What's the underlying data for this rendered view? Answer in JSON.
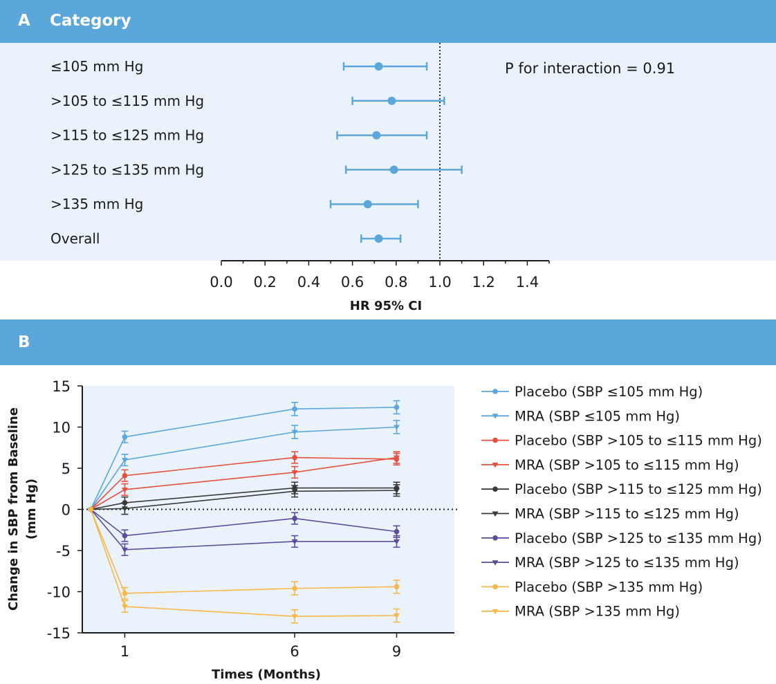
{
  "panel_a": {
    "letter": "A",
    "title": "Category"
  },
  "panel_b": {
    "letter": "B"
  },
  "colors": {
    "header": "#5ba7dc",
    "panel_bg": "#eaf3fb",
    "forest": "#5ba7dc",
    "sbp_le105": "#5ba7dc",
    "sbp_105_115": "#e8503e",
    "sbp_115_125": "#3a3a3a",
    "sbp_125_135": "#5b4d99",
    "sbp_gt135": "#f7b84b"
  },
  "chart_data": [
    {
      "type": "forest",
      "xlabel": "HR 95% CI",
      "xlim": [
        0.0,
        1.5
      ],
      "xticks": [
        "0.0",
        "0.2",
        "0.4",
        "0.6",
        "0.8",
        "1.0",
        "1.2",
        "1.4"
      ],
      "xtick_values": [
        0.0,
        0.2,
        0.4,
        0.6,
        0.8,
        1.0,
        1.2,
        1.4
      ],
      "reference_line": 1.0,
      "annotation": "P for interaction = 0.91",
      "categories": [
        "≤105 mm Hg",
        ">105 to ≤115 mm Hg",
        ">115 to ≤125 mm Hg",
        ">125 to ≤135 mm Hg",
        ">135 mm Hg",
        "Overall"
      ],
      "hr": [
        0.72,
        0.78,
        0.71,
        0.79,
        0.67,
        0.72
      ],
      "ci_low": [
        0.56,
        0.6,
        0.53,
        0.57,
        0.5,
        0.64
      ],
      "ci_high": [
        0.94,
        1.02,
        0.94,
        1.1,
        0.9,
        0.82
      ]
    },
    {
      "type": "line",
      "xlabel": "Times (Months)",
      "ylabel": "Change in SBP from Baseline (mm Hg)",
      "ylabel_lines": [
        "Change in SBP from Baseline",
        "(mm Hg)"
      ],
      "ylim": [
        -15,
        15
      ],
      "yticks": [
        "15",
        "10",
        "5",
        "0",
        "-5",
        "-10",
        "-15"
      ],
      "ytick_values": [
        15,
        10,
        5,
        0,
        -5,
        -10,
        -15
      ],
      "xlim": [
        -0.25,
        10.7
      ],
      "xticks": [
        "1",
        "6",
        "9"
      ],
      "xtick_values": [
        1,
        6,
        9
      ],
      "reference_line": 0,
      "legend_position": "right",
      "x": [
        0,
        1,
        6,
        9
      ],
      "series": [
        {
          "name": "Placebo (SBP ≤105 mm Hg)",
          "color": "#5ba7dc",
          "marker": "circle",
          "values": [
            0,
            8.8,
            12.2,
            12.4
          ],
          "err": [
            0,
            0.7,
            0.8,
            0.8
          ]
        },
        {
          "name": "MRA (SBP ≤105 mm Hg)",
          "color": "#5ba7dc",
          "marker": "triangle-down",
          "values": [
            0,
            6.0,
            9.4,
            10.0
          ],
          "err": [
            0,
            0.7,
            0.8,
            0.8
          ]
        },
        {
          "name": "Placebo (SBP >105 to ≤115 mm Hg)",
          "color": "#e8503e",
          "marker": "circle",
          "values": [
            0,
            4.1,
            6.3,
            6.1
          ],
          "err": [
            0,
            0.7,
            0.7,
            0.7
          ]
        },
        {
          "name": "MRA (SBP >105 to ≤115 mm Hg)",
          "color": "#e8503e",
          "marker": "triangle-down",
          "values": [
            0,
            2.4,
            4.5,
            6.3
          ],
          "err": [
            0,
            0.7,
            0.7,
            0.7
          ]
        },
        {
          "name": "Placebo (SBP >115 to ≤125 mm Hg)",
          "color": "#3a3a3a",
          "marker": "circle",
          "values": [
            0,
            0.8,
            2.6,
            2.6
          ],
          "err": [
            0,
            0.7,
            0.7,
            0.7
          ]
        },
        {
          "name": "MRA (SBP >115 to ≤125 mm Hg)",
          "color": "#3a3a3a",
          "marker": "triangle-down",
          "values": [
            0,
            0.1,
            2.2,
            2.3
          ],
          "err": [
            0,
            0.7,
            0.7,
            0.7
          ]
        },
        {
          "name": "Placebo (SBP >125 to ≤135 mm Hg)",
          "color": "#5b4d99",
          "marker": "circle",
          "values": [
            0,
            -3.2,
            -1.1,
            -2.7
          ],
          "err": [
            0,
            0.7,
            0.7,
            0.7
          ]
        },
        {
          "name": "MRA (SBP >125 to ≤135 mm Hg)",
          "color": "#5b4d99",
          "marker": "triangle-down",
          "values": [
            0,
            -4.9,
            -3.9,
            -3.9
          ],
          "err": [
            0,
            0.7,
            0.7,
            0.7
          ]
        },
        {
          "name": "Placebo (SBP >135 mm Hg)",
          "color": "#f7b84b",
          "marker": "circle",
          "values": [
            0,
            -10.2,
            -9.6,
            -9.4
          ],
          "err": [
            0,
            0.7,
            0.8,
            0.8
          ]
        },
        {
          "name": "MRA (SBP >135 mm Hg)",
          "color": "#f7b84b",
          "marker": "triangle-down",
          "values": [
            0,
            -11.8,
            -13.0,
            -12.9
          ],
          "err": [
            0,
            0.7,
            0.8,
            0.8
          ]
        }
      ]
    }
  ]
}
